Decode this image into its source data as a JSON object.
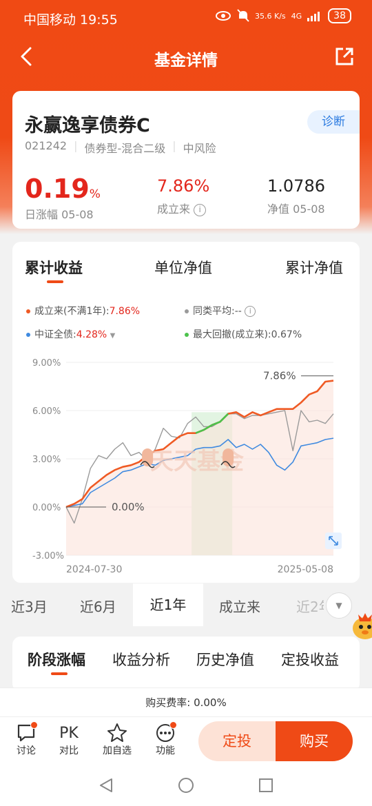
{
  "status": {
    "carrier_time": "中国移动 19:55",
    "net_speed": "35.6 K/s",
    "net_type": "4G",
    "battery": "38"
  },
  "title": "基金详情",
  "fund": {
    "name": "永赢逸享债券C",
    "diagnose": "诊断",
    "code": "021242",
    "type": "债券型-混合二级",
    "risk": "中风险",
    "daily_change_value": "0.19",
    "daily_change_unit": "%",
    "daily_change_label": "日涨幅 05-08",
    "since_inception_value": "7.86%",
    "since_inception_label": "成立来",
    "nav_value": "1.0786",
    "nav_label": "净值 05-08"
  },
  "chart_tabs": [
    "累计收益",
    "单位净值",
    "累计净值"
  ],
  "legend": {
    "fund_label": "成立来(不满1年):",
    "fund_value": "7.86%",
    "peer_label": "同类平均:",
    "peer_value": "--",
    "index_label": "中证全债:",
    "index_value": "4.28%",
    "drawdown_label": "最大回撤(成立来):",
    "drawdown_value": "0.67%"
  },
  "colors": {
    "fund": "#ef5a24",
    "peer": "#9a9a9a",
    "index": "#3f8ae0",
    "drawdown": "#4cc24c",
    "accent": "#ef4a16"
  },
  "chart_data": {
    "type": "line",
    "x_start": "2024-07-30",
    "x_end": "2025-05-08",
    "y_ticks": [
      "9.00%",
      "6.00%",
      "3.00%",
      "0.00%",
      "-3.00%"
    ],
    "ylim": [
      -3,
      9
    ],
    "annotations": [
      "7.86%",
      "0.00%"
    ],
    "series": [
      {
        "name": "成立来(不满1年)",
        "values": [
          0,
          0.2,
          0.5,
          1.2,
          1.6,
          2.0,
          2.3,
          2.5,
          2.6,
          2.8,
          3.2,
          3.5,
          3.6,
          4.0,
          4.4,
          4.6,
          4.6,
          4.8,
          5.1,
          5.3,
          5.8,
          5.9,
          5.6,
          5.9,
          5.7,
          5.9,
          6.1,
          6.1,
          6.1,
          6.5,
          7.0,
          7.2,
          7.8,
          7.86
        ]
      },
      {
        "name": "同类平均",
        "values": [
          0,
          -1.0,
          0.5,
          2.4,
          3.2,
          3.0,
          3.6,
          4.0,
          3.2,
          3.4,
          2.9,
          3.6,
          4.9,
          4.4,
          4.3,
          5.2,
          5.6,
          5.0,
          5.0,
          5.3,
          5.8,
          5.8,
          5.5,
          5.7,
          5.7,
          5.8,
          5.9,
          6.0,
          3.5,
          6.0,
          5.3,
          5.4,
          5.2,
          5.8
        ]
      },
      {
        "name": "中证全债",
        "values": [
          0,
          0.1,
          0.2,
          0.9,
          1.2,
          1.5,
          1.8,
          2.2,
          2.3,
          2.5,
          2.7,
          2.6,
          2.9,
          3.0,
          3.1,
          3.2,
          3.6,
          3.7,
          3.7,
          3.8,
          4.2,
          3.7,
          3.9,
          3.6,
          3.9,
          3.4,
          2.6,
          2.3,
          2.8,
          3.8,
          3.9,
          4.0,
          4.2,
          4.28
        ]
      }
    ]
  },
  "periods": [
    "近3月",
    "近6月",
    "近1年",
    "成立来",
    "近2年"
  ],
  "active_period": "近1年",
  "sub_tabs": [
    "阶段涨幅",
    "收益分析",
    "历史净值",
    "定投收益"
  ],
  "fee": "购买费率: 0.00%",
  "bottom": {
    "discuss": "讨论",
    "compare_top": "PK",
    "compare": "对比",
    "watch": "加自选",
    "features": "功能",
    "auto_invest": "定投",
    "buy": "购买"
  },
  "watermark": "天天基金"
}
